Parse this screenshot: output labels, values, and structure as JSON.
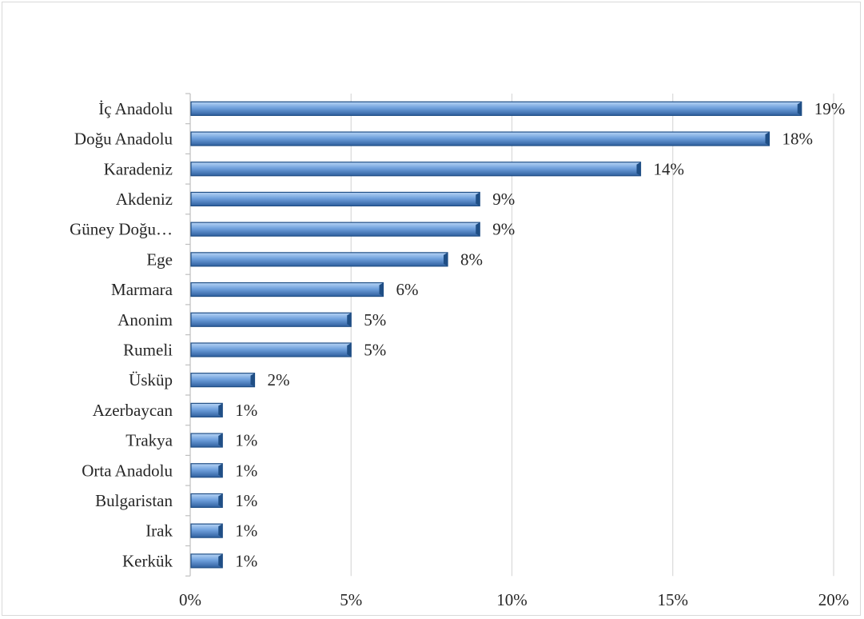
{
  "chart_data": {
    "type": "bar",
    "orientation": "horizontal",
    "categories": [
      "İç Anadolu",
      "Doğu Anadolu",
      "Karadeniz",
      "Akdeniz",
      "Güney Doğu…",
      "Ege",
      "Marmara",
      "Anonim",
      "Rumeli",
      "Üsküp",
      "Azerbaycan",
      "Trakya",
      "Orta Anadolu",
      "Bulgaristan",
      "Irak",
      "Kerkük"
    ],
    "values": [
      19,
      18,
      14,
      9,
      9,
      8,
      6,
      5,
      5,
      2,
      1,
      1,
      1,
      1,
      1,
      1
    ],
    "value_labels": [
      "19%",
      "18%",
      "14%",
      "9%",
      "9%",
      "8%",
      "6%",
      "5%",
      "5%",
      "2%",
      "1%",
      "1%",
      "1%",
      "1%",
      "1%",
      "1%"
    ],
    "x_ticks": [
      0,
      5,
      10,
      15,
      20
    ],
    "x_tick_labels": [
      "0%",
      "5%",
      "10%",
      "15%",
      "20%"
    ],
    "xlim": [
      0,
      20
    ],
    "title": "",
    "xlabel": "",
    "ylabel": "",
    "grid": "vertical",
    "legend": "none",
    "colors": {
      "bar": "#4f81bd",
      "bar_light": "#9cc3ef",
      "bar_dark": "#1f4e85",
      "grid": "#d9d9d9",
      "axis": "#bfbfbf",
      "text": "#262626"
    }
  }
}
